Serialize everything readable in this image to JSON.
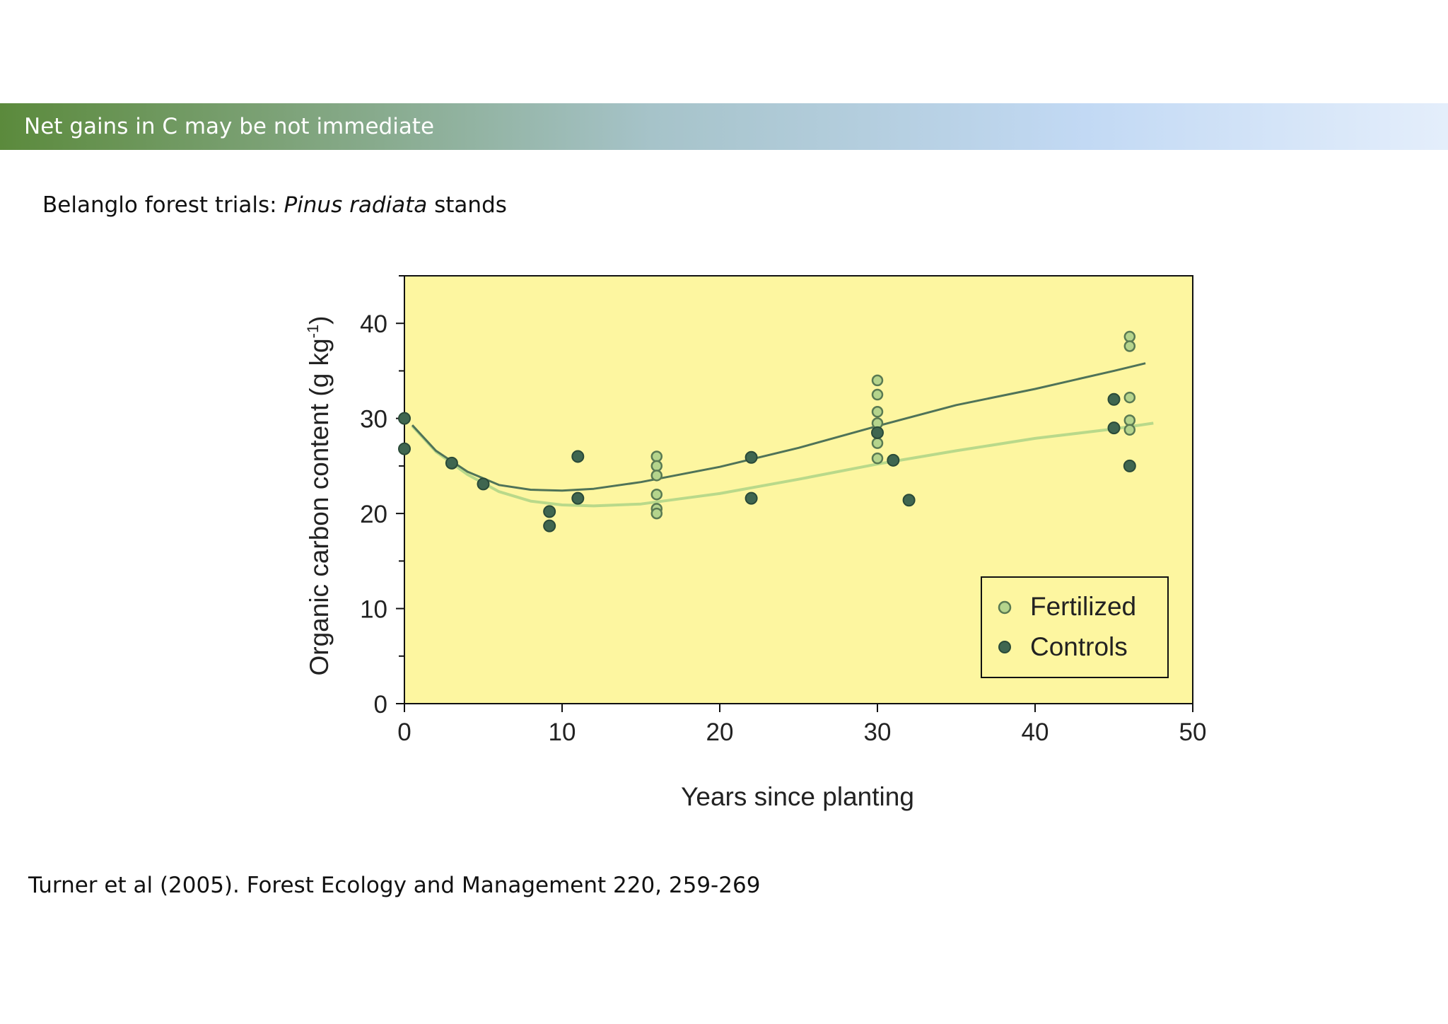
{
  "slide": {
    "title": "Net gains in C may be not immediate",
    "subtitle_prefix": "Belanglo forest trials: ",
    "subtitle_italic": "Pinus radiata",
    "subtitle_suffix": " stands",
    "citation": "Turner et al (2005). Forest Ecology and Management 220, 259-269"
  },
  "colors": {
    "banner_start": "#5b8a3c",
    "banner_end": "#e4eefb",
    "plot_background": "#fdf6a0",
    "fertilized_fill": "#b5d48c",
    "fertilized_stroke": "#5a7a52",
    "controls_fill": "#3f6650",
    "controls_stroke": "#2a4a38",
    "controls_curve": "#4f7358",
    "fertilized_curve": "#b9d98a"
  },
  "chart_data": {
    "type": "scatter",
    "xlabel": "Years since planting",
    "ylabel": "Organic carbon content (g kg",
    "ylabel_superscript": "-1",
    "ylabel_suffix": ")",
    "xlim": [
      0,
      50
    ],
    "ylim": [
      0,
      45
    ],
    "xticks": [
      0,
      10,
      20,
      30,
      40,
      50
    ],
    "yticks": [
      0,
      10,
      20,
      30,
      40
    ],
    "grid": false,
    "legend_position": "bottom-right",
    "series": [
      {
        "name": "Fertilized",
        "marker": "light-circle",
        "points": [
          [
            16,
            26
          ],
          [
            16,
            25
          ],
          [
            16,
            24
          ],
          [
            16,
            22
          ],
          [
            16,
            20.5
          ],
          [
            16,
            20
          ],
          [
            30,
            34
          ],
          [
            30,
            32.5
          ],
          [
            30,
            30.7
          ],
          [
            30,
            29.5
          ],
          [
            30,
            28.5
          ],
          [
            30,
            27.4
          ],
          [
            30,
            25.8
          ],
          [
            46,
            38.6
          ],
          [
            46,
            37.6
          ],
          [
            46,
            32.2
          ],
          [
            46,
            29.8
          ],
          [
            46,
            28.8
          ]
        ],
        "trend": [
          [
            0.5,
            29.2
          ],
          [
            2,
            26.5
          ],
          [
            4,
            24.1
          ],
          [
            6,
            22.3
          ],
          [
            8,
            21.3
          ],
          [
            10,
            20.9
          ],
          [
            12,
            20.8
          ],
          [
            15,
            21.0
          ],
          [
            20,
            22.1
          ],
          [
            25,
            23.6
          ],
          [
            30,
            25.2
          ],
          [
            35,
            26.6
          ],
          [
            40,
            27.9
          ],
          [
            45,
            28.9
          ],
          [
            47.5,
            29.5
          ]
        ]
      },
      {
        "name": "Controls",
        "marker": "dark-circle",
        "points": [
          [
            0,
            30
          ],
          [
            0,
            26.8
          ],
          [
            3,
            25.3
          ],
          [
            5,
            23.1
          ],
          [
            9.2,
            20.2
          ],
          [
            9.2,
            18.7
          ],
          [
            11,
            26
          ],
          [
            11,
            21.6
          ],
          [
            22,
            25.9
          ],
          [
            22,
            21.6
          ],
          [
            30,
            28.5
          ],
          [
            31,
            25.6
          ],
          [
            32,
            21.4
          ],
          [
            45,
            32
          ],
          [
            45,
            29
          ],
          [
            46,
            25
          ]
        ],
        "trend": [
          [
            0.5,
            29.3
          ],
          [
            2,
            26.6
          ],
          [
            4,
            24.4
          ],
          [
            6,
            23.0
          ],
          [
            8,
            22.5
          ],
          [
            10,
            22.4
          ],
          [
            12,
            22.6
          ],
          [
            15,
            23.3
          ],
          [
            20,
            24.9
          ],
          [
            25,
            26.9
          ],
          [
            30,
            29.2
          ],
          [
            35,
            31.4
          ],
          [
            40,
            33.1
          ],
          [
            45,
            35.0
          ],
          [
            47,
            35.8
          ]
        ]
      }
    ]
  }
}
